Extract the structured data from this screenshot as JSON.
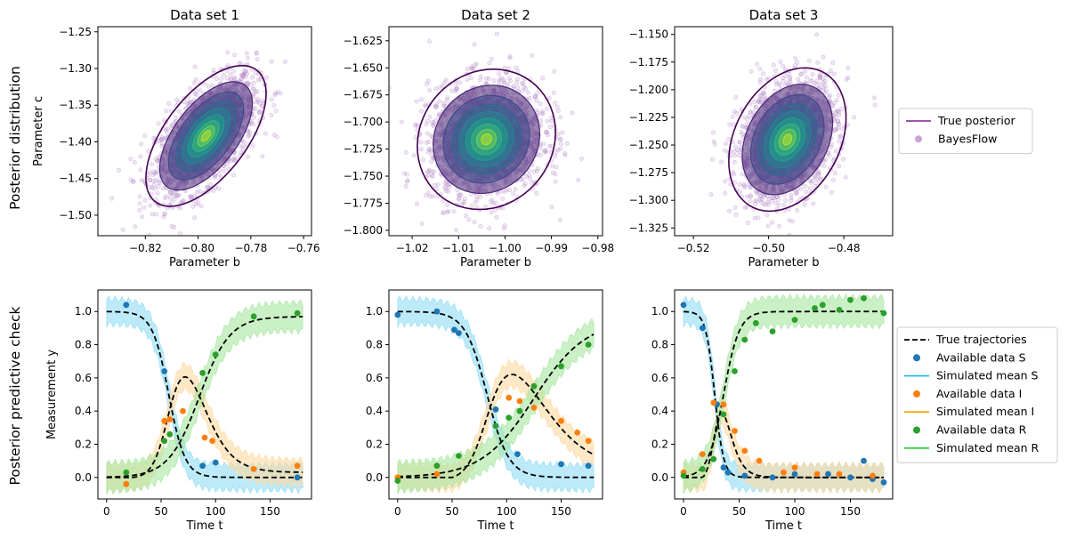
{
  "row_labels": [
    "Posterior distribution",
    "Posterior predictive check"
  ],
  "legend_top": [
    {
      "label": "True posterior",
      "color": "#7b1f8f",
      "kind": "line"
    },
    {
      "label": "BayesFlow",
      "color": "#c9a3d6",
      "kind": "dot"
    }
  ],
  "legend_bottom": [
    {
      "label": "True trajectories",
      "color": "#000000",
      "kind": "dash"
    },
    {
      "label": "Available data S",
      "color": "#1f77b4",
      "kind": "dot"
    },
    {
      "label": "Simulated mean S",
      "color": "#17b9f0",
      "kind": "line"
    },
    {
      "label": "Available data I",
      "color": "#ff7f0e",
      "kind": "dot"
    },
    {
      "label": "Simulated mean I",
      "color": "#f0a500",
      "kind": "line"
    },
    {
      "label": "Available data R",
      "color": "#2ca02c",
      "kind": "dot"
    },
    {
      "label": "Simulated mean R",
      "color": "#2bc52b",
      "kind": "line"
    }
  ],
  "colors": {
    "S": "#1f77b4",
    "I": "#ff7f0e",
    "R": "#2ca02c",
    "bandS": "#8fdcf5",
    "bandI": "#ffd9a0",
    "bandR": "#a6e6a0"
  },
  "chart_data": [
    {
      "type": "scatter",
      "title": "Data set 1",
      "xlabel": "Parameter b",
      "ylabel": "Parameter c",
      "xlim": [
        -0.838,
        -0.757
      ],
      "ylim": [
        -1.528,
        -1.243
      ],
      "xticks": [
        -0.82,
        -0.8,
        -0.78,
        -0.76
      ],
      "xtick_labels": [
        "−0.82",
        "−0.80",
        "−0.78",
        "−0.76"
      ],
      "yticks": [
        -1.25,
        -1.3,
        -1.35,
        -1.4,
        -1.45,
        -1.5
      ],
      "ytick_labels": [
        "−1.25",
        "−1.30",
        "−1.35",
        "−1.40",
        "−1.45",
        "−1.50"
      ],
      "posterior_mean": [
        -0.797,
        -1.392
      ],
      "posterior_sd": [
        0.0095,
        0.04
      ],
      "correlation": 0.6,
      "samples": 1800
    },
    {
      "type": "scatter",
      "title": "Data set 2",
      "xlabel": "Parameter b",
      "ylabel": "",
      "xlim": [
        -1.025,
        -0.979
      ],
      "ylim": [
        -1.805,
        -1.612
      ],
      "xticks": [
        -1.02,
        -1.01,
        -1.0,
        -0.99,
        -0.98
      ],
      "xtick_labels": [
        "−1.02",
        "−1.01",
        "−1.00",
        "−0.99",
        "−0.98"
      ],
      "yticks": [
        -1.625,
        -1.65,
        -1.675,
        -1.7,
        -1.725,
        -1.75,
        -1.775,
        -1.8
      ],
      "ytick_labels": [
        "−1.625",
        "−1.650",
        "−1.675",
        "−1.700",
        "−1.725",
        "−1.750",
        "−1.775",
        "−1.800"
      ],
      "posterior_mean": [
        -1.004,
        -1.716
      ],
      "posterior_sd": [
        0.0062,
        0.027
      ],
      "correlation": 0.1,
      "samples": 1800
    },
    {
      "type": "scatter",
      "title": "Data set 3",
      "xlabel": "Parameter b",
      "ylabel": "",
      "xlim": [
        -0.525,
        -0.467
      ],
      "ylim": [
        -1.332,
        -1.143
      ],
      "xticks": [
        -0.52,
        -0.5,
        -0.48
      ],
      "xtick_labels": [
        "−0.52",
        "−0.50",
        "−0.48"
      ],
      "yticks": [
        -1.15,
        -1.175,
        -1.2,
        -1.225,
        -1.25,
        -1.275,
        -1.3,
        -1.325
      ],
      "ytick_labels": [
        "−1.150",
        "−1.175",
        "−1.200",
        "−1.225",
        "−1.250",
        "−1.275",
        "−1.300",
        "−1.325"
      ],
      "posterior_mean": [
        -0.495,
        -1.245
      ],
      "posterior_sd": [
        0.0065,
        0.027
      ],
      "correlation": 0.3,
      "samples": 1800
    },
    {
      "type": "line",
      "title": "",
      "xlabel": "Time t",
      "ylabel": "Measurement y",
      "xlim": [
        -8,
        188
      ],
      "ylim": [
        -0.13,
        1.13
      ],
      "xticks": [
        0,
        50,
        100,
        150
      ],
      "xtick_labels": [
        "0",
        "50",
        "100",
        "150"
      ],
      "yticks": [
        0,
        0.2,
        0.4,
        0.6,
        0.8,
        1.0
      ],
      "ytick_labels": [
        "0.0",
        "0.2",
        "0.4",
        "0.6",
        "0.8",
        "1.0"
      ],
      "trajectory_params": {
        "s_mid": 57,
        "s_scale": 7.5,
        "r_mid": 85,
        "r_scale": 14,
        "r_max": 0.97
      },
      "data_S": [
        [
          18,
          1.04
        ],
        [
          53,
          0.64
        ],
        [
          88,
          0.07
        ],
        [
          100,
          0.09
        ],
        [
          175,
          0.0
        ]
      ],
      "data_I": [
        [
          18,
          -0.04
        ],
        [
          53,
          0.34
        ],
        [
          58,
          0.35
        ],
        [
          70,
          0.4
        ],
        [
          90,
          0.24
        ],
        [
          97,
          0.22
        ],
        [
          135,
          0.05
        ],
        [
          175,
          0.07
        ]
      ],
      "data_R": [
        [
          18,
          0.03
        ],
        [
          53,
          0.22
        ],
        [
          58,
          0.26
        ],
        [
          88,
          0.63
        ],
        [
          100,
          0.74
        ],
        [
          135,
          0.97
        ],
        [
          175,
          0.99
        ]
      ]
    },
    {
      "type": "line",
      "title": "",
      "xlabel": "Time t",
      "ylabel": "",
      "xlim": [
        -8,
        188
      ],
      "ylim": [
        -0.13,
        1.13
      ],
      "xticks": [
        0,
        50,
        100,
        150
      ],
      "xtick_labels": [
        "0",
        "50",
        "100",
        "150"
      ],
      "yticks": [
        0,
        0.2,
        0.4,
        0.6,
        0.8,
        1.0
      ],
      "ytick_labels": [
        "0.0",
        "0.2",
        "0.4",
        "0.6",
        "0.8",
        "1.0"
      ],
      "trajectory_params": {
        "s_mid": 82,
        "s_scale": 10,
        "r_mid": 125,
        "r_scale": 24,
        "r_max": 0.95
      },
      "data_S": [
        [
          0,
          0.98
        ],
        [
          36,
          1.0
        ],
        [
          52,
          0.89
        ],
        [
          56,
          0.87
        ],
        [
          90,
          0.41
        ],
        [
          110,
          0.14
        ],
        [
          150,
          0.08
        ],
        [
          175,
          0.07
        ]
      ],
      "data_I": [
        [
          0,
          0.0
        ],
        [
          36,
          0.02
        ],
        [
          102,
          0.48
        ],
        [
          112,
          0.46
        ],
        [
          125,
          0.42
        ],
        [
          150,
          0.34
        ],
        [
          165,
          0.27
        ],
        [
          175,
          0.22
        ]
      ],
      "data_R": [
        [
          0,
          -0.02
        ],
        [
          36,
          0.07
        ],
        [
          56,
          0.13
        ],
        [
          90,
          0.31
        ],
        [
          102,
          0.36
        ],
        [
          112,
          0.4
        ],
        [
          125,
          0.55
        ],
        [
          150,
          0.67
        ],
        [
          175,
          0.8
        ]
      ]
    },
    {
      "type": "line",
      "title": "",
      "xlabel": "Time t",
      "ylabel": "",
      "xlim": [
        -8,
        188
      ],
      "ylim": [
        -0.13,
        1.13
      ],
      "xticks": [
        0,
        50,
        100,
        150
      ],
      "xtick_labels": [
        "0",
        "50",
        "100",
        "150"
      ],
      "yticks": [
        0,
        0.2,
        0.4,
        0.6,
        0.8,
        1.0
      ],
      "ytick_labels": [
        "0.0",
        "0.2",
        "0.4",
        "0.6",
        "0.8",
        "1.0"
      ],
      "trajectory_params": {
        "s_mid": 28,
        "s_scale": 4,
        "r_mid": 36,
        "r_scale": 7,
        "r_max": 1.0
      },
      "data_S": [
        [
          0,
          1.04
        ],
        [
          17,
          0.9
        ],
        [
          30,
          0.44
        ],
        [
          36,
          0.06
        ],
        [
          40,
          0.03
        ],
        [
          55,
          0.01
        ],
        [
          80,
          0.0
        ],
        [
          100,
          0.02
        ],
        [
          130,
          0.02
        ],
        [
          150,
          0.0
        ],
        [
          162,
          0.1
        ],
        [
          170,
          -0.01
        ],
        [
          180,
          -0.03
        ]
      ],
      "data_I": [
        [
          0,
          0.03
        ],
        [
          17,
          0.14
        ],
        [
          27,
          0.45
        ],
        [
          36,
          0.44
        ],
        [
          46,
          0.28
        ],
        [
          55,
          0.16
        ],
        [
          68,
          0.1
        ],
        [
          90,
          0.03
        ],
        [
          100,
          0.06
        ],
        [
          120,
          0.02
        ],
        [
          140,
          0.02
        ],
        [
          170,
          0.01
        ]
      ],
      "data_R": [
        [
          0,
          0.01
        ],
        [
          17,
          0.05
        ],
        [
          27,
          0.11
        ],
        [
          36,
          0.38
        ],
        [
          46,
          0.64
        ],
        [
          55,
          0.83
        ],
        [
          65,
          0.93
        ],
        [
          80,
          0.88
        ],
        [
          100,
          0.95
        ],
        [
          118,
          1.02
        ],
        [
          125,
          1.04
        ],
        [
          140,
          1.01
        ],
        [
          150,
          1.07
        ],
        [
          162,
          1.08
        ],
        [
          180,
          0.99
        ]
      ]
    }
  ]
}
